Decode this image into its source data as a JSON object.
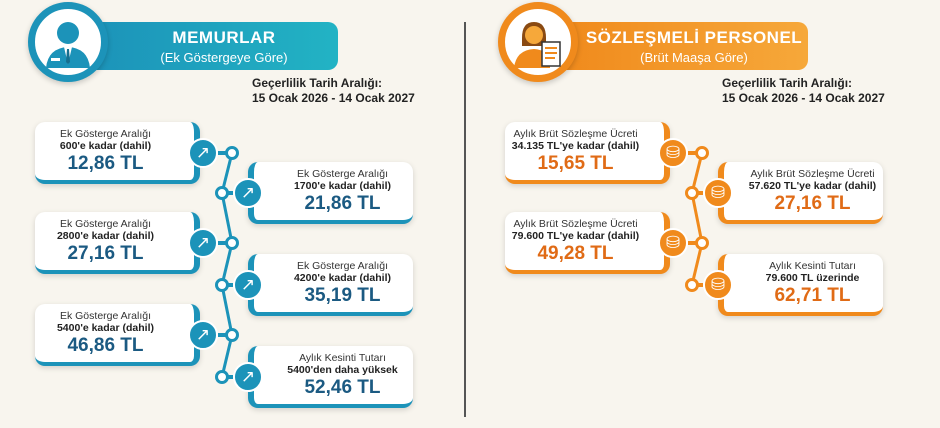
{
  "colors": {
    "memur": "#1c93b9",
    "memur_value": "#1b5a82",
    "sozlesmeli": "#f08a1c",
    "sozlesmeli_value": "#e06b16"
  },
  "memurlar": {
    "icon": "officer-icon",
    "title": "MEMURLAR",
    "subtitle": "(Ek Göstergeye Göre)",
    "date_label": "Geçerlilik Tarih Aralığı:",
    "date_range": "15 Ocak 2026 - 14 Ocak 2027",
    "items": [
      {
        "label": "Ek Gösterge Aralığı",
        "range": "600'e kadar (dahil)",
        "value": "12,86 TL",
        "icon": "arrow-up-right-icon"
      },
      {
        "label": "Ek Gösterge Aralığı",
        "range": "1700'e kadar (dahil)",
        "value": "21,86 TL",
        "icon": "arrow-up-right-icon"
      },
      {
        "label": "Ek Gösterge Aralığı",
        "range": "2800'e kadar (dahil)",
        "value": "27,16 TL",
        "icon": "arrow-up-right-icon"
      },
      {
        "label": "Ek Gösterge Aralığı",
        "range": "4200'e kadar (dahil)",
        "value": "35,19 TL",
        "icon": "arrow-up-right-icon"
      },
      {
        "label": "Ek Gösterge Aralığı",
        "range": "5400'e kadar (dahil)",
        "value": "46,86 TL",
        "icon": "arrow-up-right-icon"
      },
      {
        "label": "Aylık Kesinti Tutarı",
        "range": "5400'den daha yüksek",
        "value": "52,46 TL",
        "icon": "arrow-up-right-icon"
      }
    ]
  },
  "sozlesmeli": {
    "icon": "contract-employee-icon",
    "title": "SÖZLEŞMELİ PERSONEL",
    "subtitle": "(Brüt Maaşa Göre)",
    "date_label": "Geçerlilik Tarih Aralığı:",
    "date_range": "15 Ocak 2026 - 14 Ocak 2027",
    "items": [
      {
        "label": "Aylık Brüt Sözleşme Ücreti",
        "range": "34.135 TL'ye kadar (dahil)",
        "value": "15,65 TL",
        "icon": "coins-icon"
      },
      {
        "label": "Aylık Brüt Sözleşme Ücreti",
        "range": "57.620 TL'ye kadar (dahil)",
        "value": "27,16 TL",
        "icon": "coins-icon"
      },
      {
        "label": "Aylık Brüt Sözleşme Ücreti",
        "range": "79.600 TL'ye kadar (dahil)",
        "value": "49,28 TL",
        "icon": "coins-icon"
      },
      {
        "label": "Aylık Kesinti Tutarı",
        "range": "79.600 TL üzerinde",
        "value": "62,71 TL",
        "icon": "coins-icon"
      }
    ]
  }
}
